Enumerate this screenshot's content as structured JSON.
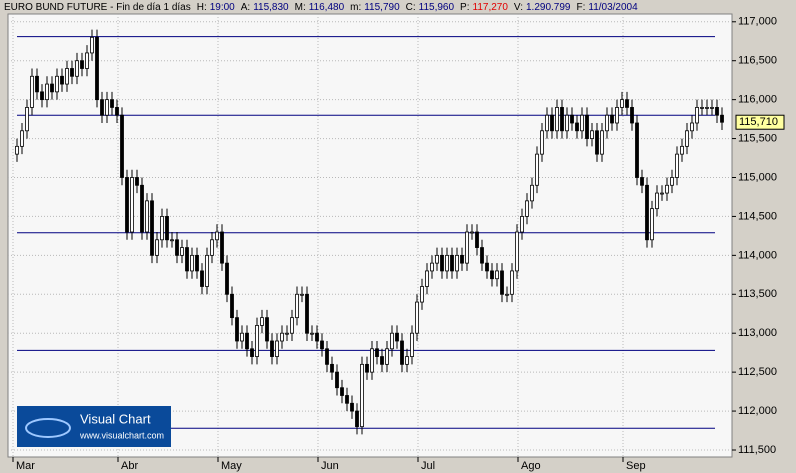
{
  "chart_data": {
    "type": "candlestick",
    "title": "EURO BUND FUTURE - Fin de día 1 días",
    "header_items": [
      {
        "label": "H:",
        "text": "19:00",
        "color": "#000080"
      },
      {
        "label": "A:",
        "text": "115,830",
        "color": "#000080"
      },
      {
        "label": "M:",
        "text": "116,480",
        "color": "#000080"
      },
      {
        "label": "m:",
        "text": "115,790",
        "color": "#000080"
      },
      {
        "label": "C:",
        "text": "115,960",
        "color": "#000080"
      },
      {
        "label": "P:",
        "text": "117,270",
        "color": "#e00000"
      },
      {
        "label": "V:",
        "text": "1.290.799",
        "color": "#000080"
      },
      {
        "label": "F:",
        "text": "11/03/2004",
        "color": "#000080"
      }
    ],
    "categories": [
      "Mar",
      null,
      null,
      null,
      null,
      null,
      null,
      null,
      null,
      null,
      null,
      null,
      null,
      null,
      null,
      null,
      null,
      null,
      null,
      null,
      null,
      "Abr",
      null,
      null,
      null,
      null,
      null,
      null,
      null,
      null,
      null,
      null,
      null,
      null,
      null,
      null,
      null,
      null,
      null,
      null,
      null,
      "May",
      null,
      null,
      null,
      null,
      null,
      null,
      null,
      null,
      null,
      null,
      null,
      null,
      null,
      null,
      null,
      null,
      null,
      null,
      null,
      "Jun",
      null,
      null,
      null,
      null,
      null,
      null,
      null,
      null,
      null,
      null,
      null,
      null,
      null,
      null,
      null,
      null,
      null,
      null,
      null,
      "Jul",
      null,
      null,
      null,
      null,
      null,
      null,
      null,
      null,
      null,
      null,
      null,
      null,
      null,
      null,
      null,
      null,
      null,
      null,
      null,
      "Ago",
      null,
      null,
      null,
      null,
      null,
      null,
      null,
      null,
      null,
      null,
      null,
      null,
      null,
      null,
      null,
      null,
      null,
      null,
      null,
      null,
      "Sep",
      null,
      null,
      null,
      null,
      null,
      null,
      null,
      null,
      null,
      null,
      null,
      null,
      null,
      null,
      null,
      null,
      null,
      null,
      null
    ],
    "open": [
      115.3,
      115.4,
      115.6,
      115.9,
      116.3,
      116.1,
      116.0,
      116.2,
      116.1,
      116.3,
      116.2,
      116.4,
      116.3,
      116.5,
      116.4,
      116.6,
      116.8,
      116.0,
      115.8,
      116.0,
      115.9,
      115.8,
      115.0,
      114.3,
      115.0,
      114.9,
      114.3,
      114.7,
      114.0,
      114.2,
      114.5,
      114.2,
      114.2,
      114.0,
      114.1,
      113.8,
      114.0,
      113.8,
      113.6,
      114.0,
      114.2,
      114.3,
      113.9,
      113.5,
      113.2,
      112.9,
      113.0,
      112.8,
      112.7,
      113.1,
      113.2,
      112.9,
      112.7,
      112.9,
      113.0,
      113.0,
      113.2,
      113.5,
      113.5,
      113.0,
      113.0,
      112.9,
      112.8,
      112.6,
      112.5,
      112.3,
      112.2,
      112.1,
      112.0,
      111.8,
      112.6,
      112.5,
      112.8,
      112.7,
      112.6,
      112.8,
      113.0,
      112.9,
      112.6,
      112.7,
      113.0,
      113.4,
      113.6,
      113.8,
      113.9,
      114.0,
      113.8,
      114.0,
      113.8,
      114.0,
      113.9,
      114.3,
      114.3,
      114.1,
      113.9,
      113.8,
      113.7,
      113.8,
      113.5,
      113.5,
      113.8,
      114.3,
      114.5,
      114.7,
      114.9,
      115.3,
      115.6,
      115.8,
      115.6,
      115.9,
      115.6,
      115.8,
      115.7,
      115.6,
      115.8,
      115.5,
      115.6,
      115.3,
      115.6,
      115.8,
      115.7,
      115.9,
      116.0,
      115.9,
      115.7,
      115.0,
      114.9,
      114.2,
      114.6,
      114.8,
      114.8,
      114.9,
      115.0,
      115.3,
      115.4,
      115.6,
      115.7,
      115.9,
      115.9,
      115.9,
      115.9,
      115.8
    ],
    "high": [
      115.5,
      115.7,
      116.0,
      116.4,
      116.4,
      116.2,
      116.3,
      116.3,
      116.4,
      116.4,
      116.5,
      116.5,
      116.6,
      116.6,
      116.7,
      116.9,
      116.9,
      116.1,
      116.1,
      116.1,
      116.0,
      115.9,
      115.1,
      115.1,
      115.1,
      115.0,
      114.8,
      114.8,
      114.3,
      114.6,
      114.6,
      114.3,
      114.3,
      114.2,
      114.2,
      114.1,
      114.1,
      113.9,
      114.1,
      114.3,
      114.4,
      114.4,
      114.0,
      113.6,
      113.3,
      113.1,
      113.1,
      112.9,
      113.2,
      113.3,
      113.3,
      113.0,
      113.0,
      113.1,
      113.1,
      113.3,
      113.6,
      113.6,
      113.6,
      113.1,
      113.1,
      113.0,
      112.9,
      112.7,
      112.6,
      112.4,
      112.3,
      112.2,
      112.1,
      112.7,
      112.7,
      112.9,
      112.9,
      112.8,
      112.9,
      113.1,
      113.1,
      113.0,
      112.8,
      113.1,
      113.5,
      113.7,
      113.9,
      114.0,
      114.1,
      114.1,
      114.1,
      114.1,
      114.1,
      114.1,
      114.4,
      114.4,
      114.4,
      114.2,
      114.0,
      113.9,
      113.9,
      113.9,
      113.6,
      113.9,
      114.4,
      114.6,
      114.8,
      115.0,
      115.4,
      115.7,
      115.9,
      115.9,
      116.0,
      116.0,
      115.9,
      115.9,
      115.8,
      115.9,
      115.9,
      115.7,
      115.7,
      115.7,
      115.9,
      115.9,
      116.0,
      116.1,
      116.1,
      116.0,
      115.8,
      115.1,
      115.0,
      114.7,
      114.9,
      114.9,
      115.0,
      115.1,
      115.4,
      115.5,
      115.7,
      115.8,
      116.0,
      116.0,
      116.0,
      116.0,
      116.0,
      115.9
    ],
    "low": [
      115.2,
      115.3,
      115.5,
      115.8,
      116.0,
      115.9,
      115.9,
      116.0,
      116.0,
      116.1,
      116.1,
      116.2,
      116.2,
      116.3,
      116.3,
      116.5,
      115.9,
      115.7,
      115.7,
      115.8,
      115.7,
      114.9,
      114.2,
      114.2,
      114.8,
      114.2,
      114.2,
      113.9,
      113.9,
      114.1,
      114.1,
      114.1,
      113.9,
      113.9,
      113.7,
      113.7,
      113.7,
      113.5,
      113.5,
      113.9,
      114.1,
      113.8,
      113.4,
      113.1,
      112.8,
      112.8,
      112.7,
      112.6,
      112.6,
      113.0,
      112.8,
      112.6,
      112.6,
      112.8,
      112.9,
      112.9,
      113.1,
      113.4,
      112.9,
      112.9,
      112.8,
      112.7,
      112.5,
      112.4,
      112.2,
      112.1,
      112.0,
      111.9,
      111.7,
      111.7,
      112.4,
      112.4,
      112.6,
      112.5,
      112.5,
      112.7,
      112.8,
      112.5,
      112.5,
      112.6,
      112.9,
      113.3,
      113.5,
      113.7,
      113.8,
      113.7,
      113.7,
      113.7,
      113.7,
      113.8,
      113.8,
      114.2,
      114.0,
      113.8,
      113.7,
      113.6,
      113.6,
      113.4,
      113.4,
      113.4,
      113.7,
      114.2,
      114.4,
      114.6,
      114.8,
      115.2,
      115.5,
      115.5,
      115.5,
      115.5,
      115.5,
      115.6,
      115.5,
      115.5,
      115.4,
      115.4,
      115.2,
      115.2,
      115.5,
      115.6,
      115.6,
      115.8,
      115.8,
      115.6,
      114.9,
      114.8,
      114.1,
      114.1,
      114.5,
      114.7,
      114.7,
      114.8,
      114.9,
      115.2,
      115.3,
      115.5,
      115.6,
      115.8,
      115.8,
      115.8,
      115.7,
      115.61
    ],
    "close": [
      115.4,
      115.6,
      115.9,
      116.3,
      116.1,
      116.0,
      116.2,
      116.1,
      116.3,
      116.2,
      116.4,
      116.3,
      116.5,
      116.4,
      116.6,
      116.8,
      116.0,
      115.8,
      116.0,
      115.9,
      115.8,
      115.0,
      114.3,
      115.0,
      114.9,
      114.3,
      114.7,
      114.0,
      114.2,
      114.5,
      114.2,
      114.2,
      114.0,
      114.1,
      113.8,
      114.0,
      113.8,
      113.6,
      114.0,
      114.2,
      114.3,
      113.9,
      113.5,
      113.2,
      112.9,
      113.0,
      112.8,
      112.7,
      113.1,
      113.2,
      112.9,
      112.7,
      112.9,
      113.0,
      113.0,
      113.2,
      113.5,
      113.5,
      113.0,
      113.0,
      112.9,
      112.8,
      112.6,
      112.5,
      112.3,
      112.2,
      112.1,
      112.0,
      111.8,
      112.6,
      112.5,
      112.8,
      112.7,
      112.6,
      112.8,
      113.0,
      112.9,
      112.6,
      112.7,
      113.0,
      113.4,
      113.6,
      113.8,
      113.9,
      114.0,
      113.8,
      114.0,
      113.8,
      114.0,
      113.9,
      114.3,
      114.3,
      114.1,
      113.9,
      113.8,
      113.7,
      113.8,
      113.5,
      113.5,
      113.8,
      114.3,
      114.5,
      114.7,
      114.9,
      115.3,
      115.6,
      115.8,
      115.6,
      115.9,
      115.6,
      115.8,
      115.7,
      115.6,
      115.8,
      115.5,
      115.6,
      115.3,
      115.6,
      115.8,
      115.7,
      115.9,
      116.0,
      115.9,
      115.7,
      115.0,
      114.9,
      114.2,
      114.6,
      114.8,
      114.8,
      114.9,
      115.0,
      115.3,
      115.4,
      115.6,
      115.7,
      115.9,
      115.9,
      115.9,
      115.9,
      115.8,
      115.71
    ],
    "ylim": [
      111.41,
      117.1
    ],
    "yticks": [
      {
        "value": 111.5,
        "label": "111,500"
      },
      {
        "value": 112,
        "label": "112,000"
      },
      {
        "value": 112.5,
        "label": "112,500"
      },
      {
        "value": 113,
        "label": "113,000"
      },
      {
        "value": 113.5,
        "label": "113,500"
      },
      {
        "value": 114,
        "label": "114,000"
      },
      {
        "value": 114.5,
        "label": "114,500"
      },
      {
        "value": 115,
        "label": "115,000"
      },
      {
        "value": 115.5,
        "label": "115,500"
      },
      {
        "value": 116,
        "label": "116,000"
      },
      {
        "value": 116.5,
        "label": "116,500"
      },
      {
        "value": 117,
        "label": "117,000"
      }
    ],
    "levels": [
      116.81,
      115.8,
      114.29,
      112.78,
      111.78
    ],
    "level_color": "#000080",
    "last_price": {
      "value": 115.71,
      "label": "115,710"
    },
    "grid": true,
    "logo": {
      "name": "Visual Chart",
      "url": "www.visualchart.com"
    }
  }
}
